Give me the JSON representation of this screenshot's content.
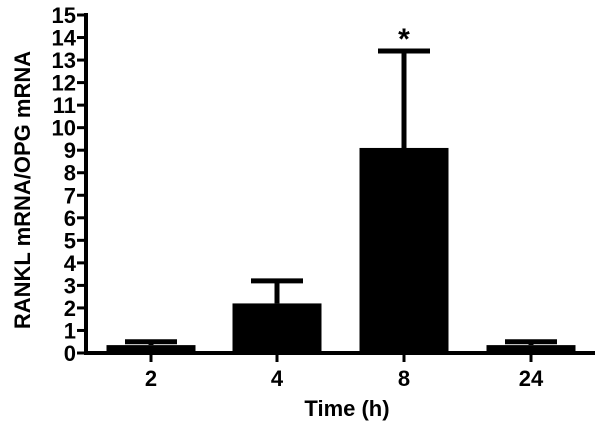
{
  "chart_data": {
    "type": "bar",
    "title": "",
    "xlabel": "Time (h)",
    "ylabel": "RANKL mRNA/OPG mRNA",
    "categories": [
      "2",
      "4",
      "8",
      "24"
    ],
    "values": [
      0.35,
      2.2,
      9.1,
      0.35
    ],
    "error_upper": [
      0.5,
      3.2,
      13.4,
      0.5
    ],
    "annotations": [
      {
        "category": "8",
        "text": "*"
      }
    ],
    "ylim": [
      0,
      15
    ],
    "yticks": [
      "0",
      "1",
      "2",
      "3",
      "4",
      "5",
      "6",
      "7",
      "8",
      "9",
      "10",
      "11",
      "12",
      "13",
      "14",
      "15"
    ],
    "grid": false,
    "legend": null,
    "bar_color": "#000000"
  }
}
